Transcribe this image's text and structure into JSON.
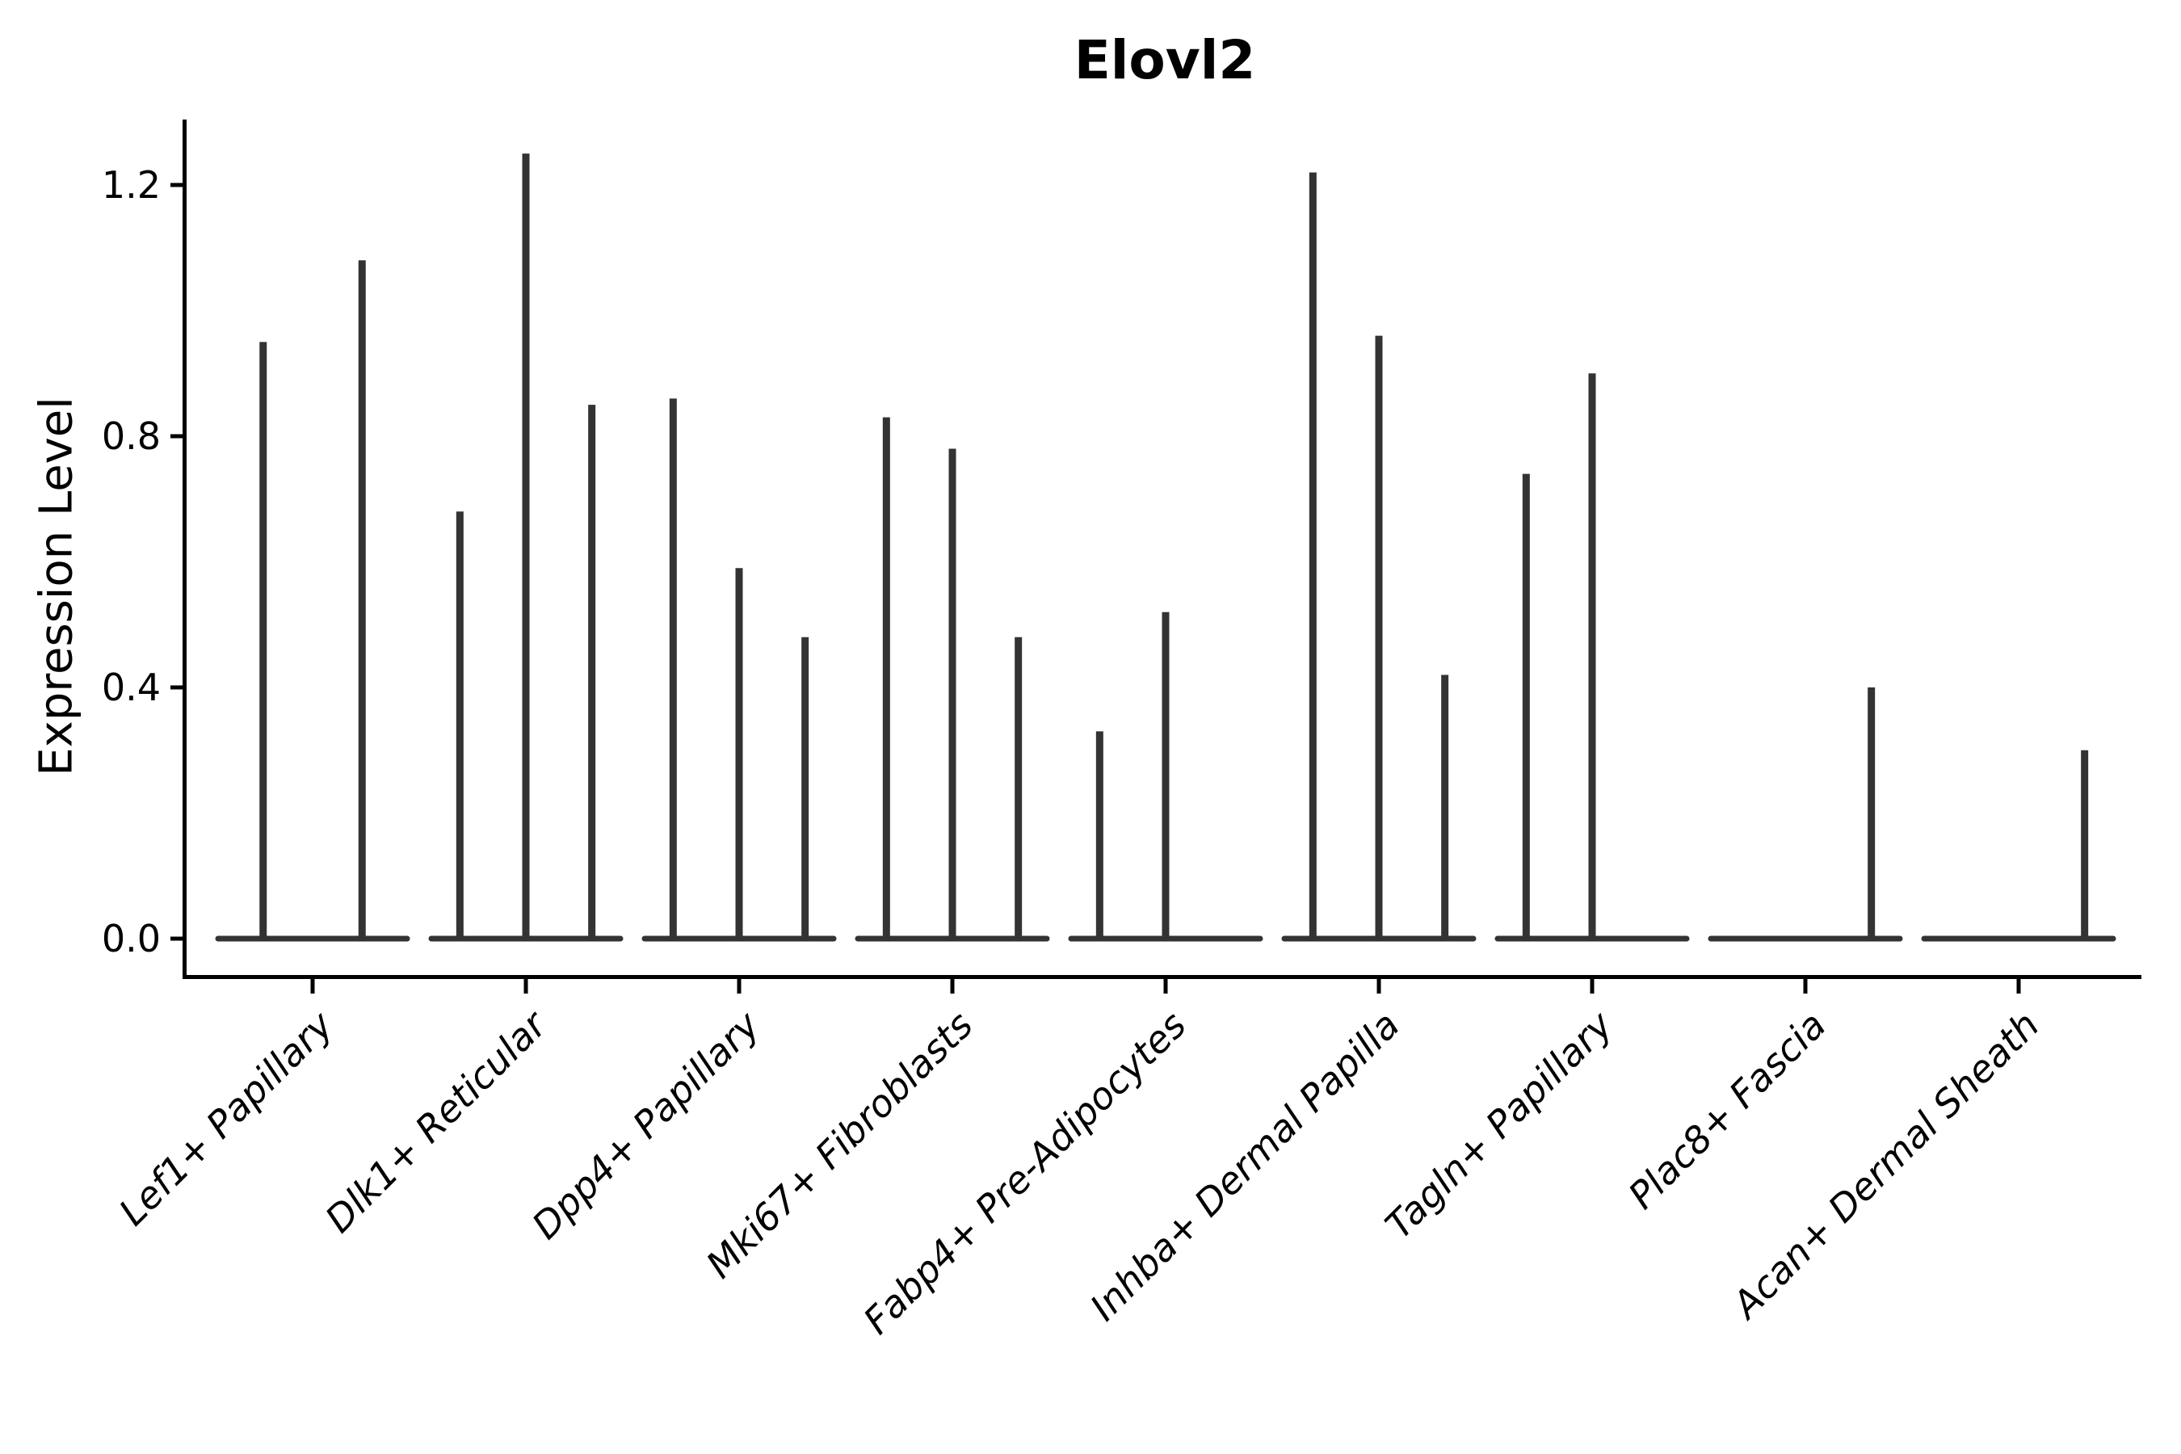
{
  "chart_data": {
    "type": "violin",
    "title": "Elovl2",
    "ylabel": "Expression Level",
    "xlabel": "",
    "ytick_labels": [
      "0.0",
      "0.4",
      "0.8",
      "1.2"
    ],
    "ytick_values": [
      0.0,
      0.4,
      0.8,
      1.2
    ],
    "ylim": [
      -0.06,
      1.31
    ],
    "grid": false,
    "legend": "none",
    "categories": [
      "Lef1+ Papillary",
      "Dlk1+ Reticular",
      "Dpp4+ Papillary",
      "Mki67+ Fibroblasts",
      "Fabp4+ Pre-Adipocytes",
      "Inhba+ Dermal Papilla",
      "Tagln+ Papillary",
      "Plac8+ Fascia",
      "Acan+ Dermal Sheath"
    ],
    "violins_per_category": [
      2,
      3,
      3,
      3,
      3,
      3,
      3,
      3,
      3
    ],
    "violin_max_expression": [
      [
        0.95,
        1.08
      ],
      [
        0.68,
        1.25,
        0.85
      ],
      [
        0.86,
        0.59,
        0.48
      ],
      [
        0.83,
        0.78,
        0.48
      ],
      [
        0.33,
        0.52,
        0.0
      ],
      [
        1.22,
        0.96,
        0.42
      ],
      [
        0.74,
        0.9,
        0.0
      ],
      [
        0.0,
        0.0,
        0.4
      ],
      [
        0.0,
        0.0,
        0.3
      ]
    ],
    "violin_color": "#333333",
    "axis_color": "#000000",
    "tick_label_color": "#000000",
    "background_color": "#ffffff"
  }
}
